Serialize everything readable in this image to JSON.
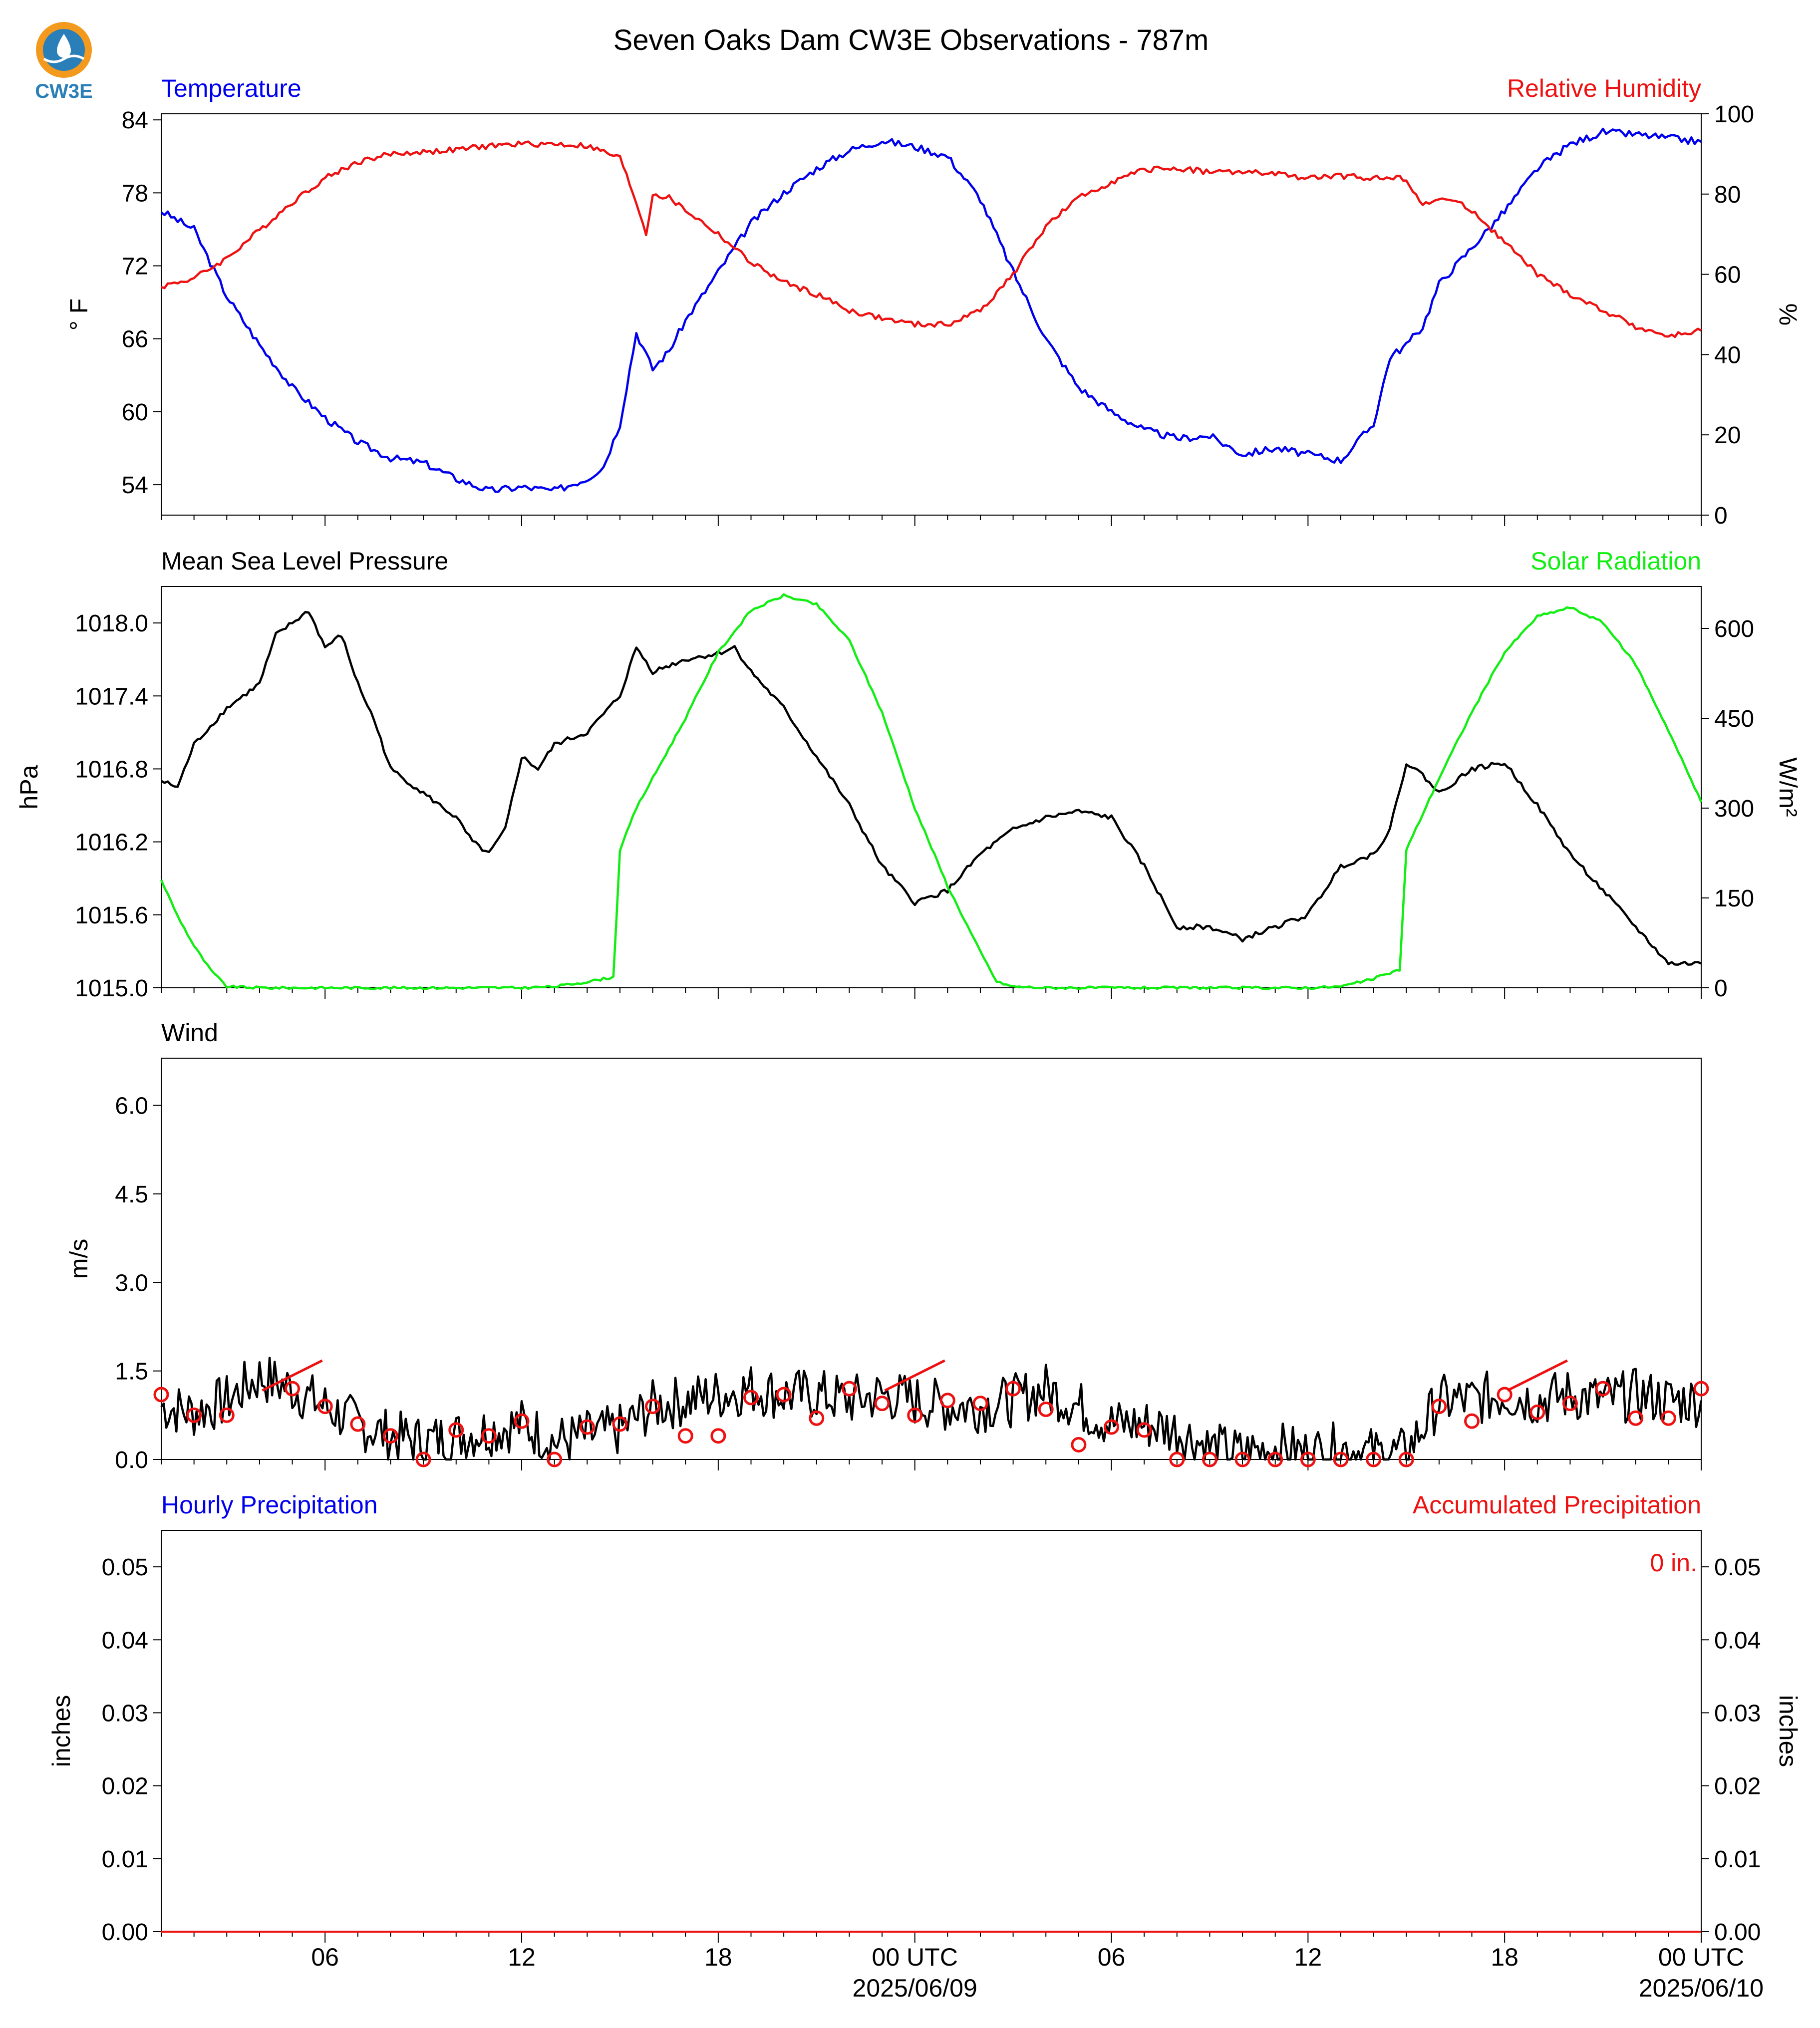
{
  "title": "Seven Oaks Dam CW3E Observations - 787m",
  "logo": {
    "text": "CW3E"
  },
  "colors": {
    "blue": "#0000ee",
    "red": "#ee1111",
    "green": "#11ee11",
    "black": "#000000",
    "gridtick": "#000000"
  },
  "x_axis": {
    "tick_labels": [
      "06",
      "12",
      "18",
      "00 UTC",
      "06",
      "12",
      "18",
      "00 UTC"
    ],
    "tick_hours": [
      6,
      12,
      18,
      24,
      30,
      36,
      42,
      48
    ],
    "date_labels": [
      "2025/06/09",
      "2025/06/10"
    ],
    "date_hours": [
      24,
      48
    ],
    "range_hours": [
      1,
      48
    ]
  },
  "chart_data": [
    {
      "type": "line",
      "panel": "temperature-humidity",
      "left_title": "Temperature",
      "right_title": "Relative Humidity",
      "ylabel_left": "° F",
      "ylabel_right": "%",
      "ylim_left": [
        51.5,
        84.5
      ],
      "ylim_right": [
        0,
        100
      ],
      "yticks_left": [
        "54",
        "60",
        "66",
        "72",
        "78",
        "84"
      ],
      "ytick_values_left": [
        54,
        60,
        66,
        72,
        78,
        84
      ],
      "yticks_right": [
        "0",
        "20",
        "40",
        "60",
        "80",
        "100"
      ],
      "ytick_values_right": [
        0,
        20,
        40,
        60,
        80,
        100
      ],
      "series": [
        {
          "name": "Temperature",
          "axis": "left",
          "color": "#0000ee",
          "x": [
            1,
            2,
            3,
            4,
            5,
            6,
            7,
            8,
            9,
            10,
            11,
            12,
            13,
            14,
            14.5,
            15,
            15.5,
            16,
            16.5,
            17,
            18,
            19,
            20,
            21,
            22,
            23,
            24,
            25,
            26,
            27,
            28,
            29,
            30,
            31,
            32,
            33,
            34,
            35,
            36,
            37,
            38,
            38.5,
            39,
            39.5,
            40,
            41,
            42,
            43,
            44,
            45,
            46,
            47,
            48
          ],
          "y": [
            76.5,
            75,
            69.5,
            65.5,
            62,
            59.5,
            57.5,
            56.2,
            55.8,
            54.5,
            53.5,
            53.8,
            53.5,
            54.5,
            55.5,
            59,
            66.5,
            63.5,
            65,
            67.5,
            71.5,
            75.5,
            78,
            80,
            81.5,
            82.3,
            81.8,
            81,
            77.5,
            71.5,
            66,
            62,
            60,
            58.5,
            57.8,
            58,
            56.5,
            57,
            56.5,
            56,
            59,
            64.5,
            65.5,
            67,
            70.5,
            73.5,
            76.5,
            80,
            82,
            83,
            82.8,
            82.5,
            82.2
          ]
        },
        {
          "name": "Relative Humidity",
          "axis": "right",
          "color": "#ee1111",
          "x": [
            1,
            2,
            3,
            4,
            5,
            6,
            7,
            8,
            9,
            10,
            11,
            12,
            13,
            14,
            15,
            15.5,
            15.8,
            16,
            16.5,
            17,
            18,
            19,
            20,
            21,
            22,
            23,
            24,
            25,
            26,
            27,
            28,
            29,
            30,
            31,
            32,
            33,
            34,
            35,
            36,
            37,
            38,
            39,
            39.5,
            40,
            40.5,
            41,
            42,
            43,
            44,
            45,
            46,
            47,
            48
          ],
          "y": [
            57,
            59,
            64,
            71,
            78,
            84,
            88,
            90,
            90.5,
            91,
            92,
            92.5,
            92.5,
            92,
            89,
            78,
            70,
            80,
            79,
            76,
            70,
            63,
            58,
            55,
            51,
            49,
            47.5,
            47.5,
            51,
            60,
            72,
            79,
            83,
            86,
            86.5,
            85.5,
            85.5,
            85,
            84,
            84.5,
            84,
            84,
            77,
            79,
            78,
            76,
            68,
            60,
            55,
            51,
            47,
            44.5,
            46
          ]
        }
      ]
    },
    {
      "type": "line",
      "panel": "pressure-solar",
      "left_title": "Mean Sea Level Pressure",
      "right_title": "Solar Radiation",
      "ylabel_left": "hPa",
      "ylabel_right": "W/m²",
      "ylim_left": [
        1015.0,
        1018.3
      ],
      "ylim_right": [
        0,
        670
      ],
      "yticks_left": [
        "1015.0",
        "1015.6",
        "1016.2",
        "1016.8",
        "1017.4",
        "1018.0"
      ],
      "ytick_values_left": [
        1015.0,
        1015.6,
        1016.2,
        1016.8,
        1017.4,
        1018.0
      ],
      "yticks_right": [
        "0",
        "150",
        "300",
        "450",
        "600"
      ],
      "ytick_values_right": [
        0,
        150,
        300,
        450,
        600
      ],
      "series": [
        {
          "name": "Mean Sea Level Pressure",
          "axis": "left",
          "color": "#000000",
          "x": [
            1,
            1.5,
            2,
            3,
            4,
            4.5,
            5,
            5.5,
            6,
            6.5,
            7,
            7.5,
            8,
            9,
            10,
            10.5,
            11,
            11.5,
            12,
            12.5,
            13,
            14,
            15,
            15.5,
            16,
            17,
            18,
            18.5,
            19,
            20,
            21,
            22,
            23,
            24,
            25,
            26,
            27,
            28,
            29,
            30,
            31,
            32,
            33,
            34,
            35,
            36,
            37,
            38,
            38.5,
            39,
            39.5,
            40,
            40.5,
            41,
            42,
            43,
            44,
            45,
            46,
            47,
            48
          ],
          "y": [
            1016.7,
            1016.65,
            1017.0,
            1017.3,
            1017.5,
            1017.9,
            1018.0,
            1018.1,
            1017.8,
            1017.9,
            1017.5,
            1017.2,
            1016.8,
            1016.6,
            1016.4,
            1016.2,
            1016.1,
            1016.3,
            1016.9,
            1016.8,
            1017.0,
            1017.1,
            1017.4,
            1017.8,
            1017.6,
            1017.7,
            1017.75,
            1017.8,
            1017.6,
            1017.3,
            1016.9,
            1016.5,
            1016.0,
            1015.7,
            1015.8,
            1016.1,
            1016.3,
            1016.4,
            1016.45,
            1016.4,
            1016.0,
            1015.5,
            1015.5,
            1015.4,
            1015.5,
            1015.6,
            1016.0,
            1016.1,
            1016.3,
            1016.85,
            1016.75,
            1016.6,
            1016.7,
            1016.8,
            1016.85,
            1016.5,
            1016.1,
            1015.8,
            1015.5,
            1015.2,
            1015.2
          ]
        },
        {
          "name": "Solar Radiation",
          "axis": "right",
          "color": "#11ee11",
          "x": [
            1,
            1.5,
            2,
            2.5,
            3,
            4,
            5,
            6,
            7,
            8,
            9,
            10,
            11,
            12,
            13,
            14,
            14.5,
            14.8,
            15,
            15.5,
            16,
            17,
            18,
            19,
            20,
            21,
            22,
            23,
            24,
            25,
            26,
            26.5,
            27,
            28,
            29,
            30,
            31,
            32,
            33,
            34,
            35,
            36,
            37,
            38,
            38.5,
            38.8,
            39,
            39.5,
            40,
            41,
            42,
            43,
            44,
            45,
            46,
            47,
            48
          ],
          "y": [
            180,
            120,
            70,
            30,
            2,
            0,
            0,
            0,
            0,
            0,
            0,
            0,
            0,
            0,
            2,
            10,
            15,
            18,
            230,
            300,
            350,
            450,
            560,
            630,
            655,
            640,
            580,
            460,
            300,
            170,
            60,
            10,
            2,
            0,
            0,
            0,
            0,
            0,
            0,
            0,
            0,
            0,
            2,
            15,
            25,
            30,
            230,
            290,
            350,
            460,
            560,
            620,
            635,
            610,
            540,
            430,
            310
          ]
        }
      ]
    },
    {
      "type": "line",
      "panel": "wind",
      "left_title": "Wind",
      "ylabel_left": "m/s",
      "ylim_left": [
        0,
        6.8
      ],
      "yticks_left": [
        "0.0",
        "1.5",
        "3.0",
        "4.5",
        "6.0"
      ],
      "ytick_values_left": [
        0.0,
        1.5,
        3.0,
        4.5,
        6.0
      ],
      "series": [
        {
          "name": "Wind Speed",
          "color": "#000000",
          "x": [
            1,
            2,
            3,
            4,
            5,
            6,
            7,
            8,
            9,
            10,
            11,
            12,
            13,
            14,
            15,
            16,
            17,
            18,
            19,
            20,
            21,
            22,
            23,
            24,
            25,
            26,
            27,
            28,
            29,
            30,
            31,
            32,
            33,
            34,
            35,
            36,
            37,
            38,
            39,
            40,
            41,
            42,
            43,
            44,
            45,
            46,
            47,
            48
          ],
          "y": [
            0.9,
            0.8,
            1.0,
            1.4,
            1.2,
            0.9,
            0.6,
            0.4,
            0.3,
            0.4,
            0.5,
            0.6,
            0.3,
            0.4,
            0.5,
            0.9,
            1.0,
            1.1,
            1.2,
            1.1,
            1.1,
            1.0,
            1.1,
            1.0,
            0.9,
            0.9,
            1.0,
            1.2,
            0.9,
            0.6,
            0.6,
            0.5,
            0.2,
            0.1,
            0.2,
            0.1,
            0.2,
            0.1,
            0.1,
            1.0,
            1.0,
            1.1,
            1.0,
            1.1,
            1.0,
            1.1,
            1.0,
            1.0
          ]
        }
      ],
      "gust_circles": {
        "x": [
          1,
          2,
          3,
          5,
          6,
          7,
          8,
          9,
          10,
          11,
          12,
          13,
          14,
          15,
          16,
          17,
          18,
          19,
          20,
          21,
          22,
          23,
          24,
          25,
          26,
          27,
          28,
          29,
          30,
          31,
          32,
          33,
          34,
          35,
          36,
          37,
          38,
          39,
          40,
          41,
          42,
          43,
          44,
          45,
          46,
          47,
          48
        ],
        "y": [
          1.1,
          0.75,
          0.75,
          1.2,
          0.9,
          0.6,
          0.4,
          0.0,
          0.5,
          0.4,
          0.65,
          0.0,
          0.55,
          0.6,
          0.9,
          0.4,
          0.4,
          1.05,
          1.1,
          0.7,
          1.2,
          0.95,
          0.75,
          1.0,
          0.95,
          1.2,
          0.85,
          0.25,
          0.55,
          0.5,
          0.0,
          0.0,
          0.0,
          0.0,
          0.0,
          0.0,
          0.0,
          0.0,
          0.9,
          0.65,
          1.1,
          0.8,
          0.95,
          1.2,
          0.7,
          0.7,
          1.2
        ]
      },
      "wind_barbs": {
        "x": [
          5,
          24,
          43
        ],
        "description": "direction barbs"
      }
    },
    {
      "type": "line",
      "panel": "precipitation",
      "left_title": "Hourly Precipitation",
      "right_title": "Accumulated Precipitation",
      "ylabel_left": "inches",
      "ylabel_right": "inches",
      "ylim_left": [
        0,
        0.055
      ],
      "ylim_right": [
        0,
        0.055
      ],
      "yticks_left": [
        "0.00",
        "0.01",
        "0.02",
        "0.03",
        "0.04",
        "0.05"
      ],
      "ytick_values_left": [
        0,
        0.01,
        0.02,
        0.03,
        0.04,
        0.05
      ],
      "yticks_right": [
        "0.00",
        "0.01",
        "0.02",
        "0.03",
        "0.04",
        "0.05"
      ],
      "ytick_values_right": [
        0,
        0.01,
        0.02,
        0.03,
        0.04,
        0.05
      ],
      "annotation": "0 in.",
      "series": [
        {
          "name": "Hourly Precipitation",
          "color": "#0000ee",
          "x": [
            1,
            48
          ],
          "y": [
            0,
            0
          ]
        },
        {
          "name": "Accumulated Precipitation",
          "color": "#ee1111",
          "x": [
            1,
            48
          ],
          "y": [
            0,
            0
          ]
        }
      ]
    }
  ]
}
